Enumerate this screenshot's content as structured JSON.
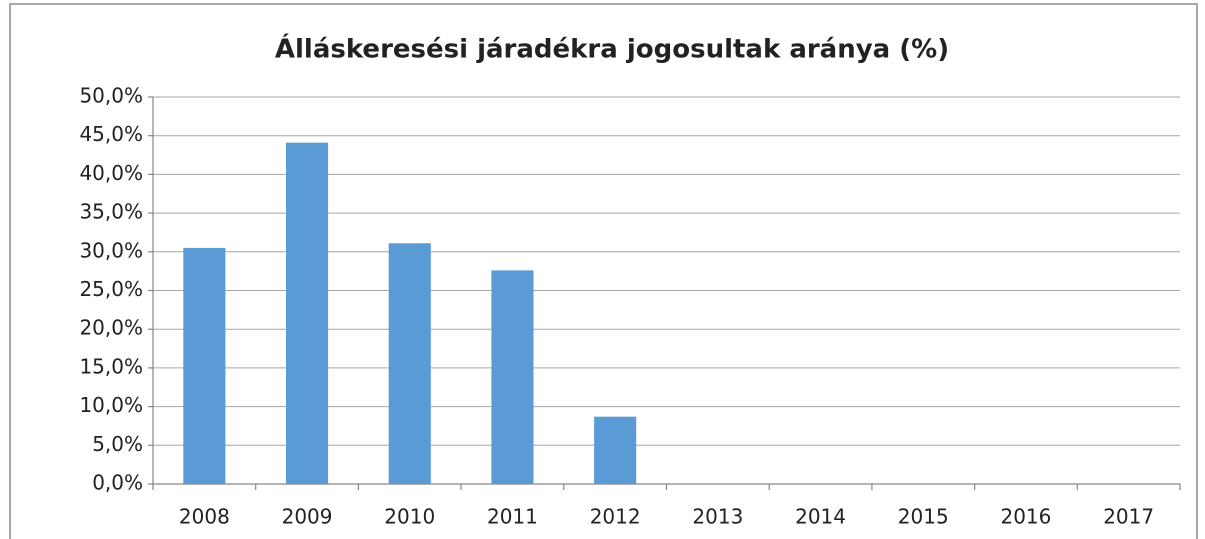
{
  "chart_data": {
    "type": "bar",
    "title": "Álláskeresési járadékra jogosultak aránya (%)",
    "categories": [
      "2008",
      "2009",
      "2010",
      "2011",
      "2012",
      "2013",
      "2014",
      "2015",
      "2016",
      "2017"
    ],
    "values": [
      30.5,
      44.1,
      31.1,
      27.6,
      8.7,
      null,
      null,
      null,
      null,
      null
    ],
    "color": "#5b9bd5",
    "ylim": [
      0,
      50
    ],
    "yticks": [
      {
        "value": 0,
        "label": "0,0%"
      },
      {
        "value": 5,
        "label": "5,0%"
      },
      {
        "value": 10,
        "label": "10,0%"
      },
      {
        "value": 15,
        "label": "15,0%"
      },
      {
        "value": 20,
        "label": "20,0%"
      },
      {
        "value": 25,
        "label": "25,0%"
      },
      {
        "value": 30,
        "label": "30,0%"
      },
      {
        "value": 35,
        "label": "35,0%"
      },
      {
        "value": 40,
        "label": "40,0%"
      },
      {
        "value": 45,
        "label": "45,0%"
      },
      {
        "value": 50,
        "label": "50,0%"
      }
    ],
    "grid": true
  }
}
